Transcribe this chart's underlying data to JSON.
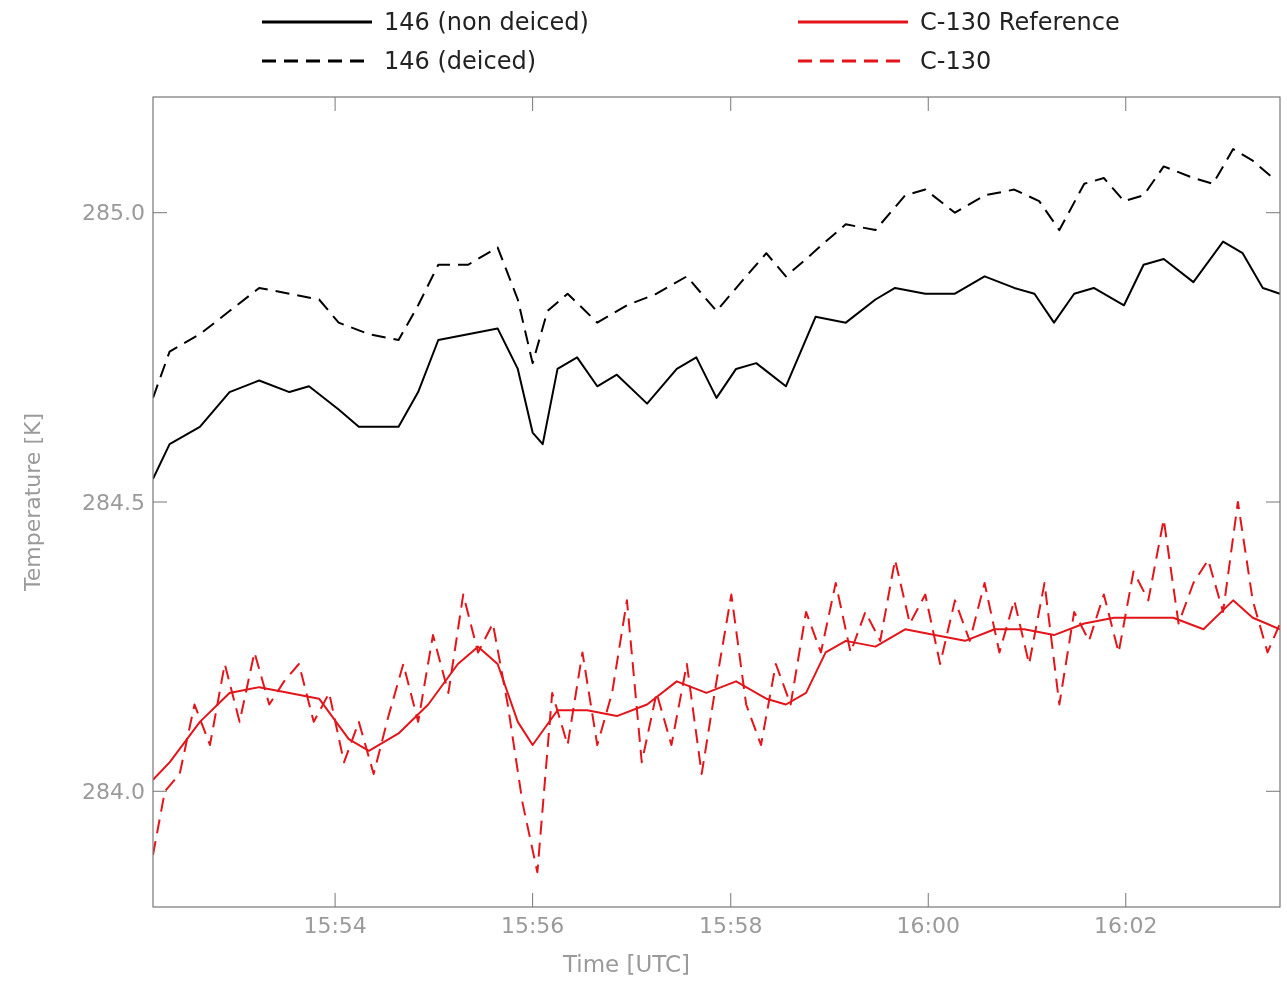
{
  "chart_data": {
    "type": "line",
    "xlabel": "Time [UTC]",
    "ylabel": "Temperature [K]",
    "xlim": [
      15.8693,
      16.0593
    ],
    "ylim": [
      283.8,
      285.2
    ],
    "xticks": [
      {
        "value": 15.9,
        "label": "15:54"
      },
      {
        "value": 15.9333,
        "label": "15:56"
      },
      {
        "value": 15.9667,
        "label": "15:58"
      },
      {
        "value": 16.0,
        "label": "16:00"
      },
      {
        "value": 16.0333,
        "label": "16:02"
      }
    ],
    "yticks": [
      {
        "value": 284.0,
        "label": "284.0"
      },
      {
        "value": 284.5,
        "label": "284.5"
      },
      {
        "value": 285.0,
        "label": "285.0"
      }
    ],
    "grid": false,
    "legend": "top",
    "series": [
      {
        "name": "146 (non deiced)",
        "color": "#000000",
        "line_style": "solid",
        "x": [
          15.8693,
          15.8721,
          15.8772,
          15.8822,
          15.8872,
          15.8923,
          15.8956,
          15.9006,
          15.904,
          15.9107,
          15.914,
          15.9174,
          15.9224,
          15.9274,
          15.9308,
          15.9333,
          15.935,
          15.9375,
          15.9408,
          15.9442,
          15.9475,
          15.9526,
          15.9576,
          15.9609,
          15.9643,
          15.9676,
          15.971,
          15.976,
          15.981,
          15.9861,
          15.9911,
          15.9944,
          15.9995,
          16.0045,
          16.0095,
          16.0145,
          16.0179,
          16.0212,
          16.0246,
          16.0279,
          16.033,
          16.0363,
          16.0397,
          16.0447,
          16.0497,
          16.053,
          16.0564,
          16.0593
        ],
        "values": [
          284.54,
          284.6,
          284.63,
          284.69,
          284.71,
          284.69,
          284.7,
          284.66,
          284.63,
          284.63,
          284.69,
          284.78,
          284.79,
          284.8,
          284.73,
          284.62,
          284.6,
          284.73,
          284.75,
          284.7,
          284.72,
          284.67,
          284.73,
          284.75,
          284.68,
          284.73,
          284.74,
          284.7,
          284.82,
          284.81,
          284.85,
          284.87,
          284.86,
          284.86,
          284.89,
          284.87,
          284.86,
          284.81,
          284.86,
          284.87,
          284.84,
          284.91,
          284.92,
          284.88,
          284.95,
          284.93,
          284.87,
          284.86
        ]
      },
      {
        "name": "146 (deiced)",
        "color": "#000000",
        "line_style": "dashed",
        "x": [
          15.8693,
          15.8721,
          15.8772,
          15.8822,
          15.8872,
          15.8923,
          15.8973,
          15.9006,
          15.9057,
          15.9107,
          15.914,
          15.9174,
          15.9224,
          15.9274,
          15.9308,
          15.9333,
          15.9358,
          15.9392,
          15.9442,
          15.9492,
          15.9542,
          15.9593,
          15.9643,
          15.9693,
          15.9727,
          15.976,
          15.9794,
          15.9827,
          15.9861,
          15.9911,
          15.9961,
          15.9995,
          16.0045,
          16.0095,
          16.0145,
          16.0187,
          16.0221,
          16.0263,
          16.0296,
          16.033,
          16.0363,
          16.0397,
          16.0447,
          16.048,
          16.0514,
          16.0547,
          16.0581
        ],
        "values": [
          284.68,
          284.76,
          284.79,
          284.83,
          284.87,
          284.86,
          284.85,
          284.81,
          284.79,
          284.78,
          284.84,
          284.91,
          284.91,
          284.94,
          284.85,
          284.74,
          284.83,
          284.86,
          284.81,
          284.84,
          284.86,
          284.89,
          284.83,
          284.89,
          284.93,
          284.89,
          284.92,
          284.95,
          284.98,
          284.97,
          285.03,
          285.04,
          285.0,
          285.03,
          285.04,
          285.02,
          284.97,
          285.05,
          285.06,
          285.02,
          285.03,
          285.08,
          285.06,
          285.05,
          285.11,
          285.09,
          285.06
        ]
      },
      {
        "name": "C-130 Reference",
        "color": "#e3151a",
        "line_style": "solid",
        "x": [
          15.8693,
          15.8721,
          15.8772,
          15.8822,
          15.8872,
          15.8923,
          15.8973,
          15.9023,
          15.9057,
          15.9107,
          15.9157,
          15.9207,
          15.9241,
          15.9274,
          15.9308,
          15.9333,
          15.9375,
          15.9425,
          15.9475,
          15.9526,
          15.9576,
          15.9626,
          15.9676,
          15.9727,
          15.976,
          15.9794,
          15.9827,
          15.9861,
          15.9911,
          15.9961,
          16.0011,
          16.0062,
          16.0112,
          16.0162,
          16.0212,
          16.0263,
          16.0313,
          16.0363,
          16.0413,
          16.0464,
          16.0514,
          16.0547,
          16.0593
        ],
        "values": [
          284.02,
          284.05,
          284.12,
          284.17,
          284.18,
          284.17,
          284.16,
          284.09,
          284.07,
          284.1,
          284.15,
          284.22,
          284.25,
          284.22,
          284.12,
          284.08,
          284.14,
          284.14,
          284.13,
          284.15,
          284.19,
          284.17,
          284.19,
          284.16,
          284.15,
          284.17,
          284.24,
          284.26,
          284.25,
          284.28,
          284.27,
          284.26,
          284.28,
          284.28,
          284.27,
          284.29,
          284.3,
          284.3,
          284.3,
          284.28,
          284.33,
          284.3,
          284.28
        ]
      },
      {
        "name": "C-130",
        "color": "#e3151a",
        "line_style": "dashed",
        "x": [
          15.8693,
          15.8713,
          15.8738,
          15.8763,
          15.8789,
          15.8814,
          15.8839,
          15.8864,
          15.8889,
          15.8914,
          15.8939,
          15.8964,
          15.899,
          15.9015,
          15.904,
          15.9065,
          15.909,
          15.9115,
          15.914,
          15.9165,
          15.9191,
          15.9216,
          15.9241,
          15.9266,
          15.9291,
          15.9316,
          15.9341,
          15.9366,
          15.9392,
          15.9417,
          15.9442,
          15.9467,
          15.9492,
          15.9517,
          15.9542,
          15.9567,
          15.9593,
          15.9618,
          15.9643,
          15.9668,
          15.9693,
          15.9718,
          15.9743,
          15.9768,
          15.9794,
          15.9819,
          15.9844,
          15.9869,
          15.9894,
          15.9919,
          15.9944,
          15.9969,
          15.9995,
          16.002,
          16.0045,
          16.007,
          16.0095,
          16.012,
          16.0145,
          16.017,
          16.0196,
          16.0221,
          16.0246,
          16.0271,
          16.0296,
          16.0321,
          16.0346,
          16.0371,
          16.0397,
          16.0422,
          16.0447,
          16.0472,
          16.0497,
          16.0522,
          16.0547,
          16.0572,
          16.0593
        ],
        "values": [
          283.89,
          284.0,
          284.03,
          284.15,
          284.08,
          284.22,
          284.12,
          284.24,
          284.15,
          284.19,
          284.22,
          284.12,
          284.17,
          284.05,
          284.12,
          284.03,
          284.13,
          284.22,
          284.12,
          284.27,
          284.17,
          284.34,
          284.24,
          284.29,
          284.15,
          283.98,
          283.86,
          284.17,
          284.08,
          284.24,
          284.08,
          284.17,
          284.33,
          284.05,
          284.17,
          284.08,
          284.22,
          284.03,
          284.19,
          284.34,
          284.15,
          284.08,
          284.22,
          284.15,
          284.31,
          284.24,
          284.36,
          284.24,
          284.31,
          284.26,
          284.4,
          284.29,
          284.34,
          284.22,
          284.33,
          284.26,
          284.36,
          284.24,
          284.33,
          284.22,
          284.36,
          284.15,
          284.31,
          284.26,
          284.34,
          284.24,
          284.38,
          284.33,
          284.47,
          284.29,
          284.36,
          284.4,
          284.31,
          284.5,
          284.33,
          284.24,
          284.29
        ]
      }
    ]
  }
}
